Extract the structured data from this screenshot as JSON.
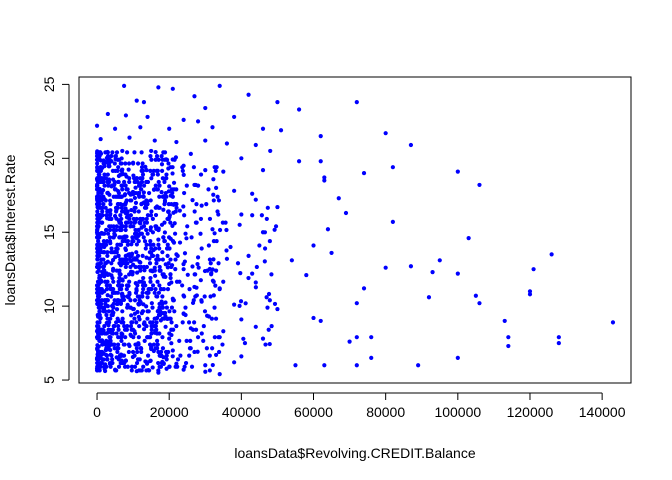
{
  "chart_data": {
    "type": "scatter",
    "title": "",
    "xlabel": "loansData$Revolving.CREDIT.Balance",
    "ylabel": "loansData$Interest.Rate",
    "xlim": [
      -5000,
      148000
    ],
    "ylim": [
      4.8,
      25.5
    ],
    "xticks": [
      0,
      20000,
      40000,
      60000,
      80000,
      100000,
      120000,
      140000
    ],
    "xtick_labels": [
      "0",
      "20000",
      "40000",
      "60000",
      "80000",
      "100000",
      "120000",
      "140000"
    ],
    "yticks": [
      5,
      10,
      15,
      20,
      25
    ],
    "ytick_labels": [
      "5",
      "10",
      "15",
      "20",
      "25"
    ],
    "grid": false,
    "legend": "none",
    "point_color": "#0000ff",
    "points": [
      [
        7500,
        24.9
      ],
      [
        17000,
        24.8
      ],
      [
        21000,
        24.7
      ],
      [
        34000,
        24.9
      ],
      [
        42000,
        24.3
      ],
      [
        27000,
        24.2
      ],
      [
        11000,
        23.9
      ],
      [
        13000,
        23.8
      ],
      [
        30000,
        23.4
      ],
      [
        50000,
        23.8
      ],
      [
        56000,
        23.3
      ],
      [
        72000,
        23.8
      ],
      [
        3000,
        23.0
      ],
      [
        8000,
        22.9
      ],
      [
        14000,
        22.8
      ],
      [
        24000,
        22.6
      ],
      [
        28000,
        22.5
      ],
      [
        38000,
        22.8
      ],
      [
        0,
        22.2
      ],
      [
        5000,
        22.0
      ],
      [
        12000,
        22.1
      ],
      [
        20000,
        22.0
      ],
      [
        32000,
        22.1
      ],
      [
        46000,
        22.0
      ],
      [
        51000,
        21.9
      ],
      [
        62000,
        21.5
      ],
      [
        80000,
        21.7
      ],
      [
        1000,
        21.3
      ],
      [
        9000,
        21.4
      ],
      [
        16000,
        21.2
      ],
      [
        22000,
        21.1
      ],
      [
        30000,
        21.2
      ],
      [
        36000,
        21.0
      ],
      [
        44000,
        20.9
      ],
      [
        87000,
        20.9
      ],
      [
        48000,
        20.5
      ],
      [
        3000,
        20.4
      ],
      [
        7000,
        20.5
      ],
      [
        15000,
        20.5
      ],
      [
        26000,
        20.3
      ],
      [
        40000,
        20.0
      ],
      [
        56000,
        19.8
      ],
      [
        62000,
        19.8
      ],
      [
        82000,
        19.4
      ],
      [
        100000,
        19.1
      ],
      [
        74000,
        19.0
      ],
      [
        0,
        19.9
      ],
      [
        4000,
        19.8
      ],
      [
        10000,
        19.7
      ],
      [
        18000,
        19.6
      ],
      [
        24000,
        19.5
      ],
      [
        30000,
        19.2
      ],
      [
        35000,
        19.1
      ],
      [
        46000,
        19.2
      ],
      [
        63000,
        18.7
      ],
      [
        63000,
        18.5
      ],
      [
        106000,
        18.2
      ],
      [
        0,
        18.6
      ],
      [
        6000,
        18.4
      ],
      [
        12000,
        18.3
      ],
      [
        20000,
        18.1
      ],
      [
        27000,
        18.2
      ],
      [
        33000,
        18.0
      ],
      [
        38000,
        17.8
      ],
      [
        43000,
        17.6
      ],
      [
        67000,
        17.3
      ],
      [
        44000,
        17.2
      ],
      [
        1000,
        17.3
      ],
      [
        8000,
        17.0
      ],
      [
        14000,
        17.1
      ],
      [
        22000,
        16.9
      ],
      [
        29000,
        16.8
      ],
      [
        50000,
        16.7
      ],
      [
        69000,
        16.3
      ],
      [
        82000,
        15.7
      ],
      [
        40000,
        16.2
      ],
      [
        1000,
        16.0
      ],
      [
        6000,
        15.8
      ],
      [
        12000,
        15.6
      ],
      [
        18000,
        15.5
      ],
      [
        25000,
        15.4
      ],
      [
        32000,
        15.2
      ],
      [
        46000,
        15.0
      ],
      [
        64000,
        15.2
      ],
      [
        0,
        15.0
      ],
      [
        5000,
        14.8
      ],
      [
        11000,
        14.6
      ],
      [
        17000,
        14.5
      ],
      [
        23000,
        14.3
      ],
      [
        31000,
        14.1
      ],
      [
        37000,
        14.0
      ],
      [
        45000,
        14.1
      ],
      [
        60000,
        14.1
      ],
      [
        103000,
        14.6
      ],
      [
        2000,
        14.0
      ],
      [
        8000,
        13.8
      ],
      [
        15000,
        13.6
      ],
      [
        22000,
        13.5
      ],
      [
        28000,
        13.3
      ],
      [
        36000,
        13.2
      ],
      [
        42000,
        13.4
      ],
      [
        54000,
        13.1
      ],
      [
        65000,
        13.6
      ],
      [
        95000,
        13.1
      ],
      [
        126000,
        13.5
      ],
      [
        3000,
        13.0
      ],
      [
        10000,
        12.8
      ],
      [
        16000,
        12.6
      ],
      [
        24000,
        12.5
      ],
      [
        33000,
        12.4
      ],
      [
        43000,
        12.2
      ],
      [
        58000,
        12.1
      ],
      [
        80000,
        12.6
      ],
      [
        87000,
        12.7
      ],
      [
        93000,
        12.3
      ],
      [
        100000,
        12.2
      ],
      [
        121000,
        12.5
      ],
      [
        1000,
        12.0
      ],
      [
        7000,
        11.8
      ],
      [
        13000,
        11.6
      ],
      [
        20000,
        11.5
      ],
      [
        27000,
        11.3
      ],
      [
        34000,
        11.2
      ],
      [
        44000,
        11.6
      ],
      [
        74000,
        11.2
      ],
      [
        113000,
        9.0
      ],
      [
        120000,
        11.0
      ],
      [
        120000,
        10.8
      ],
      [
        2000,
        11.0
      ],
      [
        9000,
        10.8
      ],
      [
        14000,
        10.6
      ],
      [
        21000,
        10.5
      ],
      [
        29000,
        10.3
      ],
      [
        38000,
        10.1
      ],
      [
        47000,
        10.6
      ],
      [
        72000,
        10.2
      ],
      [
        92000,
        10.6
      ],
      [
        105000,
        10.7
      ],
      [
        106000,
        10.2
      ],
      [
        3000,
        10.0
      ],
      [
        10000,
        9.8
      ],
      [
        17000,
        9.7
      ],
      [
        24000,
        9.5
      ],
      [
        31000,
        9.3
      ],
      [
        40000,
        9.1
      ],
      [
        50000,
        9.8
      ],
      [
        60000,
        9.2
      ],
      [
        62000,
        9.0
      ],
      [
        143000,
        8.9
      ],
      [
        1000,
        9.2
      ],
      [
        6000,
        9.0
      ],
      [
        13000,
        8.8
      ],
      [
        19000,
        8.6
      ],
      [
        26000,
        8.5
      ],
      [
        35000,
        8.3
      ],
      [
        44000,
        8.6
      ],
      [
        0,
        8.3
      ],
      [
        7000,
        8.1
      ],
      [
        14000,
        7.9
      ],
      [
        20000,
        7.8
      ],
      [
        28000,
        7.9
      ],
      [
        34000,
        7.9
      ],
      [
        41000,
        7.5
      ],
      [
        46000,
        7.8
      ],
      [
        70000,
        7.6
      ],
      [
        72000,
        7.9
      ],
      [
        76000,
        7.9
      ],
      [
        114000,
        7.3
      ],
      [
        114000,
        7.9
      ],
      [
        128000,
        7.9
      ],
      [
        128000,
        7.5
      ],
      [
        2000,
        7.5
      ],
      [
        9000,
        7.3
      ],
      [
        15000,
        7.1
      ],
      [
        21000,
        7.0
      ],
      [
        27000,
        6.9
      ],
      [
        33000,
        6.7
      ],
      [
        40000,
        6.6
      ],
      [
        76000,
        6.5
      ],
      [
        100000,
        6.5
      ],
      [
        1000,
        6.5
      ],
      [
        8000,
        6.3
      ],
      [
        14000,
        6.2
      ],
      [
        22000,
        6.1
      ],
      [
        30000,
        6.0
      ],
      [
        38000,
        6.2
      ],
      [
        55000,
        6.0
      ],
      [
        63000,
        6.0
      ],
      [
        72000,
        6.0
      ],
      [
        89000,
        6.0
      ],
      [
        1000,
        5.9
      ],
      [
        5000,
        5.7
      ],
      [
        11000,
        5.6
      ],
      [
        17000,
        5.5
      ],
      [
        24000,
        5.7
      ],
      [
        34000,
        5.4
      ]
    ],
    "dense_clusters": [
      {
        "x_range": [
          0,
          22000
        ],
        "y_range": [
          5.5,
          20.5
        ],
        "count": 900
      },
      {
        "x_range": [
          0,
          35000
        ],
        "y_range": [
          5.5,
          19.5
        ],
        "count": 300
      },
      {
        "x_range": [
          0,
          50000
        ],
        "y_range": [
          6.0,
          18.0
        ],
        "count": 120
      }
    ]
  }
}
